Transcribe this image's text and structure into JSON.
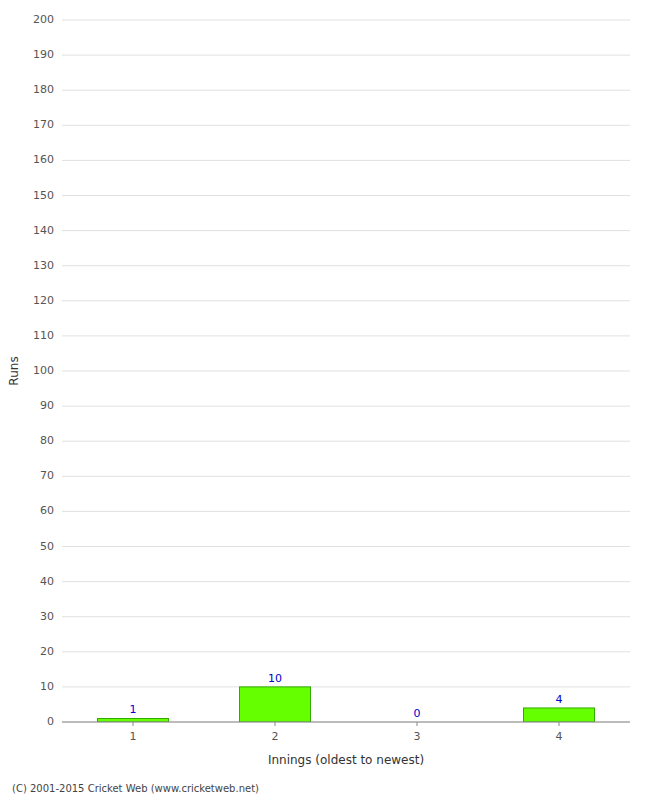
{
  "chart_data": {
    "type": "bar",
    "categories": [
      1,
      2,
      3,
      4
    ],
    "values": [
      1,
      10,
      0,
      4
    ],
    "color": "#66ff00",
    "xlabel": "Innings (oldest to newest)",
    "ylabel": "Runs",
    "ylim": [
      0,
      200
    ],
    "yticks": [
      0,
      10,
      20,
      30,
      40,
      50,
      60,
      70,
      80,
      90,
      100,
      110,
      120,
      130,
      140,
      150,
      160,
      170,
      180,
      190,
      200
    ],
    "grid": true,
    "data_labels": true,
    "footer": "(C) 2001-2015 Cricket Web (www.cricketweb.net)"
  }
}
